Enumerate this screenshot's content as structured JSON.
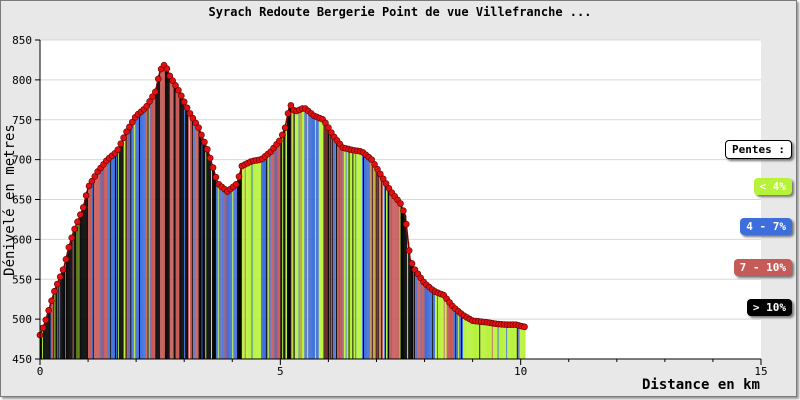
{
  "chart_data": {
    "type": "area",
    "title": "Syrach Redoute Bergerie Point de vue Villefranche ...",
    "xlabel": "Distance en km",
    "ylabel": "Dénivelé en metres",
    "xlim": [
      0,
      15
    ],
    "ylim": [
      450,
      850
    ],
    "x_ticks": [
      "0",
      "5",
      "10",
      "15"
    ],
    "y_ticks": [
      "450",
      "500",
      "550",
      "600",
      "650",
      "700",
      "750",
      "800",
      "850"
    ],
    "grid": "horizontal",
    "legend_position": "right",
    "legend_title": "Pentes :",
    "legend": [
      {
        "label": "< 4%",
        "color": "#b7f23a"
      },
      {
        "label": "4 - 7%",
        "color": "#3d6edb"
      },
      {
        "label": "7 - 10%",
        "color": "#c65a56"
      },
      {
        "label": "> 10%",
        "color": "#000000"
      }
    ],
    "marker_color": "#e01010",
    "profile": [
      {
        "x": 0.0,
        "y": 480
      },
      {
        "x": 0.1,
        "y": 495
      },
      {
        "x": 0.2,
        "y": 515
      },
      {
        "x": 0.3,
        "y": 535
      },
      {
        "x": 0.5,
        "y": 565
      },
      {
        "x": 0.6,
        "y": 590
      },
      {
        "x": 0.7,
        "y": 610
      },
      {
        "x": 0.9,
        "y": 640
      },
      {
        "x": 1.0,
        "y": 665
      },
      {
        "x": 1.2,
        "y": 685
      },
      {
        "x": 1.4,
        "y": 700
      },
      {
        "x": 1.6,
        "y": 710
      },
      {
        "x": 1.8,
        "y": 735
      },
      {
        "x": 2.0,
        "y": 755
      },
      {
        "x": 2.2,
        "y": 765
      },
      {
        "x": 2.4,
        "y": 785
      },
      {
        "x": 2.5,
        "y": 812
      },
      {
        "x": 2.6,
        "y": 820
      },
      {
        "x": 2.7,
        "y": 805
      },
      {
        "x": 2.9,
        "y": 785
      },
      {
        "x": 3.1,
        "y": 760
      },
      {
        "x": 3.3,
        "y": 740
      },
      {
        "x": 3.5,
        "y": 710
      },
      {
        "x": 3.6,
        "y": 690
      },
      {
        "x": 3.7,
        "y": 670
      },
      {
        "x": 3.9,
        "y": 660
      },
      {
        "x": 4.1,
        "y": 670
      },
      {
        "x": 4.2,
        "y": 692
      },
      {
        "x": 4.4,
        "y": 698
      },
      {
        "x": 4.6,
        "y": 700
      },
      {
        "x": 4.8,
        "y": 710
      },
      {
        "x": 5.0,
        "y": 725
      },
      {
        "x": 5.1,
        "y": 740
      },
      {
        "x": 5.2,
        "y": 770
      },
      {
        "x": 5.3,
        "y": 760
      },
      {
        "x": 5.5,
        "y": 765
      },
      {
        "x": 5.7,
        "y": 755
      },
      {
        "x": 5.9,
        "y": 750
      },
      {
        "x": 6.1,
        "y": 730
      },
      {
        "x": 6.3,
        "y": 715
      },
      {
        "x": 6.5,
        "y": 712
      },
      {
        "x": 6.7,
        "y": 710
      },
      {
        "x": 6.9,
        "y": 700
      },
      {
        "x": 7.1,
        "y": 680
      },
      {
        "x": 7.3,
        "y": 660
      },
      {
        "x": 7.5,
        "y": 645
      },
      {
        "x": 7.6,
        "y": 630
      },
      {
        "x": 7.7,
        "y": 575
      },
      {
        "x": 7.8,
        "y": 562
      },
      {
        "x": 8.0,
        "y": 545
      },
      {
        "x": 8.2,
        "y": 535
      },
      {
        "x": 8.4,
        "y": 530
      },
      {
        "x": 8.6,
        "y": 515
      },
      {
        "x": 8.8,
        "y": 505
      },
      {
        "x": 9.0,
        "y": 498
      },
      {
        "x": 9.3,
        "y": 496
      },
      {
        "x": 9.5,
        "y": 494
      },
      {
        "x": 9.7,
        "y": 493
      },
      {
        "x": 9.9,
        "y": 493
      },
      {
        "x": 10.1,
        "y": 490
      }
    ]
  }
}
